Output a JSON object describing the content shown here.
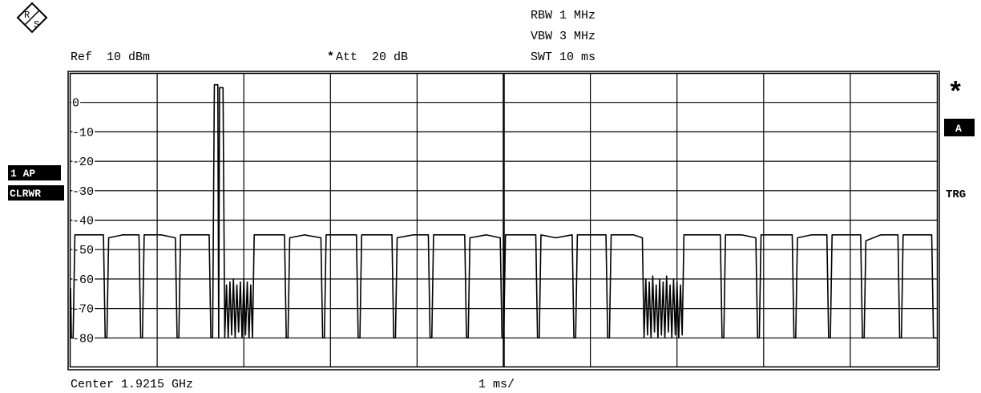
{
  "chart_data": {
    "type": "line",
    "labels": {
      "rbw": "RBW 1 MHz",
      "vbw": "VBW 3 MHz",
      "swt": "SWT 10 ms",
      "ref": "Ref  10 dBm",
      "att_star": "*",
      "att": "Att  20 dB",
      "center": "Center 1.9215 GHz",
      "span": "1 ms/",
      "trace": "1 AP",
      "mode": "CLRWR",
      "marker": "*",
      "window": "A",
      "trigger": "TRG",
      "logo_r": "R",
      "logo_s": "S"
    },
    "xlim": [
      0,
      10
    ],
    "ylim": [
      -90,
      10
    ],
    "yticks": [
      0,
      -10,
      -20,
      -30,
      -40,
      -50,
      -60,
      -70,
      -80
    ],
    "grid": true,
    "x": [
      0,
      0.01,
      0.03,
      0.05,
      0.3,
      0.38,
      0.4,
      0.42,
      0.44,
      0.6,
      0.79,
      0.81,
      0.83,
      0.85,
      1.05,
      1.21,
      1.23,
      1.25,
      1.27,
      1.45,
      1.6,
      1.62,
      1.64,
      1.66,
      1.7,
      1.71,
      1.72,
      1.76,
      1.78,
      1.8,
      1.82,
      1.84,
      1.86,
      1.88,
      1.9,
      1.92,
      1.94,
      1.96,
      1.98,
      2.0,
      2.02,
      2.04,
      2.06,
      2.08,
      2.1,
      2.12,
      2.3,
      2.47,
      2.49,
      2.51,
      2.53,
      2.7,
      2.89,
      2.91,
      2.93,
      2.95,
      3.1,
      3.3,
      3.32,
      3.34,
      3.36,
      3.55,
      3.71,
      3.73,
      3.75,
      3.77,
      3.95,
      4.13,
      4.15,
      4.17,
      4.19,
      4.4,
      4.55,
      4.57,
      4.59,
      4.61,
      4.8,
      4.96,
      4.98,
      5.0,
      5.02,
      5.2,
      5.37,
      5.39,
      5.41,
      5.43,
      5.6,
      5.79,
      5.81,
      5.83,
      5.85,
      6.0,
      6.18,
      6.2,
      6.22,
      6.24,
      6.5,
      6.6,
      6.62,
      6.64,
      6.66,
      6.68,
      6.7,
      6.72,
      6.74,
      6.76,
      6.78,
      6.8,
      6.82,
      6.84,
      6.86,
      6.88,
      6.9,
      6.92,
      6.94,
      6.96,
      6.98,
      7.0,
      7.02,
      7.04,
      7.06,
      7.08,
      7.3,
      7.5,
      7.52,
      7.54,
      7.56,
      7.75,
      7.91,
      7.93,
      7.95,
      7.97,
      8.15,
      8.33,
      8.35,
      8.37,
      8.39,
      8.55,
      8.73,
      8.75,
      8.77,
      8.79,
      8.95,
      9.12,
      9.14,
      9.16,
      9.18,
      9.35,
      9.55,
      9.57,
      9.59,
      9.61,
      9.8,
      9.94,
      9.96,
      9.98,
      10
    ],
    "series": [
      {
        "color": "#000000",
        "values": [
          -63,
          -80,
          -80,
          -45,
          -45,
          -45,
          -80,
          -80,
          -46,
          -45,
          -45,
          -80,
          -80,
          -45,
          -45,
          -46,
          -80,
          -80,
          -45,
          -45,
          -45,
          -80,
          -80,
          6,
          6,
          -80,
          5,
          5,
          -80,
          -62,
          -80,
          -61,
          -79,
          -60,
          -80,
          -62,
          -78,
          -61,
          -80,
          -60,
          -79,
          -61,
          -80,
          -62,
          -80,
          -45,
          -45,
          -45,
          -80,
          -80,
          -46,
          -45,
          -46,
          -80,
          -80,
          -45,
          -45,
          -45,
          -80,
          -80,
          -45,
          -45,
          -45,
          -80,
          -80,
          -46,
          -45,
          -45,
          -80,
          -80,
          -45,
          -45,
          -45,
          -80,
          -80,
          -46,
          -45,
          -46,
          -80,
          -80,
          -45,
          -45,
          -45,
          -80,
          -80,
          -45,
          -46,
          -45,
          -80,
          -80,
          -45,
          -45,
          -45,
          -80,
          -80,
          -45,
          -45,
          -46,
          -80,
          -60,
          -79,
          -61,
          -80,
          -59,
          -78,
          -62,
          -80,
          -60,
          -79,
          -61,
          -80,
          -59,
          -78,
          -62,
          -80,
          -60,
          -79,
          -61,
          -80,
          -62,
          -79,
          -45,
          -45,
          -45,
          -80,
          -80,
          -45,
          -45,
          -46,
          -80,
          -80,
          -45,
          -45,
          -45,
          -80,
          -80,
          -46,
          -45,
          -45,
          -80,
          -80,
          -45,
          -45,
          -45,
          -80,
          -80,
          -47,
          -45,
          -45,
          -80,
          -80,
          -45,
          -45,
          -45,
          -80,
          -80,
          -80
        ]
      }
    ]
  }
}
